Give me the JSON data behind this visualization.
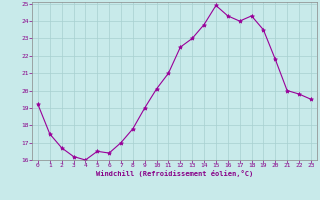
{
  "x": [
    0,
    1,
    2,
    3,
    4,
    5,
    6,
    7,
    8,
    9,
    10,
    11,
    12,
    13,
    14,
    15,
    16,
    17,
    18,
    19,
    20,
    21,
    22,
    23
  ],
  "y": [
    19.2,
    17.5,
    16.7,
    16.2,
    16.0,
    16.5,
    16.4,
    17.0,
    17.8,
    19.0,
    20.1,
    21.0,
    22.5,
    23.0,
    23.8,
    24.9,
    24.3,
    24.0,
    24.3,
    23.5,
    21.8,
    20.0,
    19.8,
    19.5
  ],
  "line_color": "#990099",
  "marker": "*",
  "markersize": 3,
  "linewidth": 0.8,
  "xlabel": "Windchill (Refroidissement éolien,°C)",
  "ylim": [
    16,
    25
  ],
  "xlim": [
    -0.5,
    23.5
  ],
  "yticks": [
    16,
    17,
    18,
    19,
    20,
    21,
    22,
    23,
    24,
    25
  ],
  "xticks": [
    0,
    1,
    2,
    3,
    4,
    5,
    6,
    7,
    8,
    9,
    10,
    11,
    12,
    13,
    14,
    15,
    16,
    17,
    18,
    19,
    20,
    21,
    22,
    23
  ],
  "bg_color": "#c8eaea",
  "grid_color": "#a8d0d0",
  "tick_color": "#880088",
  "label_color": "#880088",
  "spine_color": "#888888"
}
